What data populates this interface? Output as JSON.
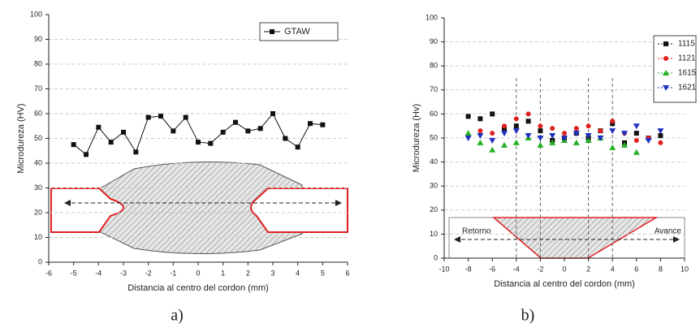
{
  "chart_data": [
    {
      "type": "line",
      "caption": "a)",
      "xlabel": "Distancia al centro del cordon (mm)",
      "ylabel": "Microdureza (HV)",
      "x": [
        -5,
        -4.5,
        -4,
        -3.5,
        -3,
        -2.5,
        -2,
        -1.5,
        -1,
        -0.5,
        0,
        0.5,
        1,
        1.5,
        2,
        2.5,
        3,
        3.5,
        4,
        4.5,
        5
      ],
      "series": [
        {
          "name": "GTAW",
          "color": "#111111",
          "marker": "square",
          "values": [
            47.5,
            43.5,
            54.5,
            48.5,
            52.5,
            44.5,
            58.5,
            59,
            53,
            58.5,
            48.5,
            48,
            52.5,
            56.5,
            53,
            54,
            60,
            50,
            46.5,
            56,
            55.5
          ]
        }
      ],
      "xlim": [
        -6,
        6
      ],
      "xticks": [
        -6,
        -5,
        -4,
        -3,
        -2,
        -1,
        0,
        1,
        2,
        3,
        4,
        5,
        6
      ],
      "ylim": [
        0,
        100
      ],
      "yticks": [
        0,
        10,
        20,
        30,
        40,
        50,
        60,
        70,
        80,
        90,
        100
      ],
      "grid": true,
      "legend": "upper right"
    },
    {
      "type": "scatter",
      "caption": "b)",
      "xlabel": "Distancia al centro del cordon (mm)",
      "ylabel": "Microdureza (Hv)",
      "annotations": [
        "Retorno",
        "Avance"
      ],
      "vlines": [
        -4,
        -2,
        2,
        4
      ],
      "x": [
        -8,
        -7,
        -6,
        -5,
        -4,
        -3,
        -2,
        -1,
        0,
        1,
        2,
        3,
        4,
        5,
        6,
        7,
        8
      ],
      "series": [
        {
          "name": "1115",
          "color": "#111111",
          "marker": "square",
          "values": [
            59,
            58,
            60,
            54,
            55,
            57,
            53,
            49,
            50,
            52,
            50,
            53,
            56,
            48,
            52,
            50,
            51
          ]
        },
        {
          "name": "1121",
          "color": "#e02020",
          "marker": "circle",
          "values": [
            51,
            53,
            52,
            55,
            58,
            60,
            55,
            54,
            52,
            54,
            55,
            53,
            57,
            52,
            49,
            50,
            48
          ]
        },
        {
          "name": "1615",
          "color": "#22b022",
          "marker": "triangle",
          "values": [
            52,
            48,
            45,
            47,
            48,
            50,
            47,
            48,
            49,
            48,
            49,
            50,
            46,
            47,
            44,
            null,
            null
          ]
        },
        {
          "name": "1621",
          "color": "#2030c0",
          "marker": "triangle-down",
          "values": [
            50,
            51,
            49,
            52,
            53,
            51,
            50,
            51,
            50,
            52,
            51,
            50,
            53,
            52,
            55,
            49,
            53
          ]
        }
      ],
      "xlim": [
        -10,
        10
      ],
      "xticks": [
        -10,
        -8,
        -6,
        -4,
        -2,
        0,
        2,
        4,
        6,
        8,
        10
      ],
      "ylim": [
        0,
        100
      ],
      "yticks": [
        0,
        10,
        20,
        30,
        40,
        50,
        60,
        70,
        80,
        90,
        100
      ],
      "grid": true,
      "legend": "upper right"
    }
  ]
}
